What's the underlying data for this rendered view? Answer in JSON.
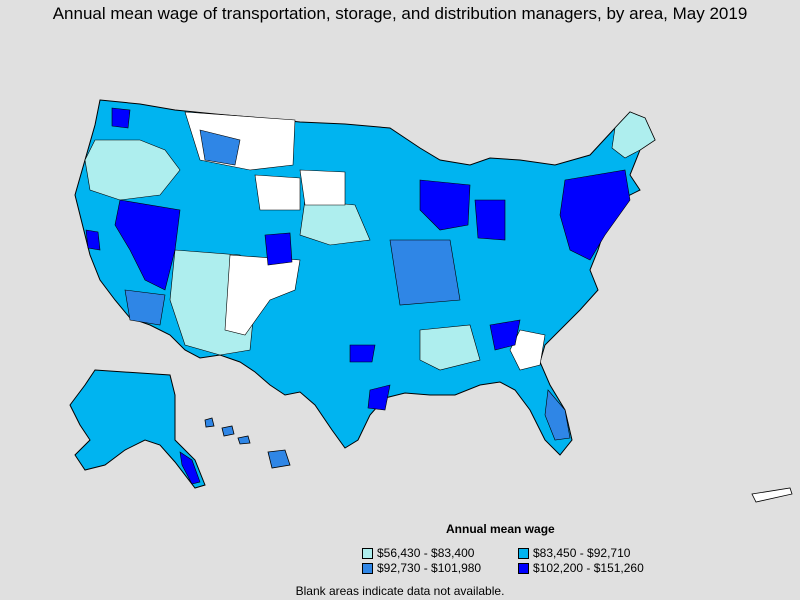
{
  "title": "Annual mean wage of transportation, storage, and distribution managers, by area, May 2019",
  "colors": {
    "background": "#e0e0e0",
    "blank": "#ffffff",
    "tier1": "#aeeeee",
    "tier2": "#00b4f0",
    "tier3": "#2f86e6",
    "tier4": "#0000ff"
  },
  "legend": {
    "title": "Annual mean wage",
    "items": [
      {
        "label": "$56,430 - $83,400",
        "color": "#aeeeee"
      },
      {
        "label": "$83,450 - $92,710",
        "color": "#00b4f0"
      },
      {
        "label": "$92,730 - $101,980",
        "color": "#2f86e6"
      },
      {
        "label": "$102,200 - $151,260",
        "color": "#0000ff"
      }
    ]
  },
  "note": "Blank areas indicate data not available."
}
